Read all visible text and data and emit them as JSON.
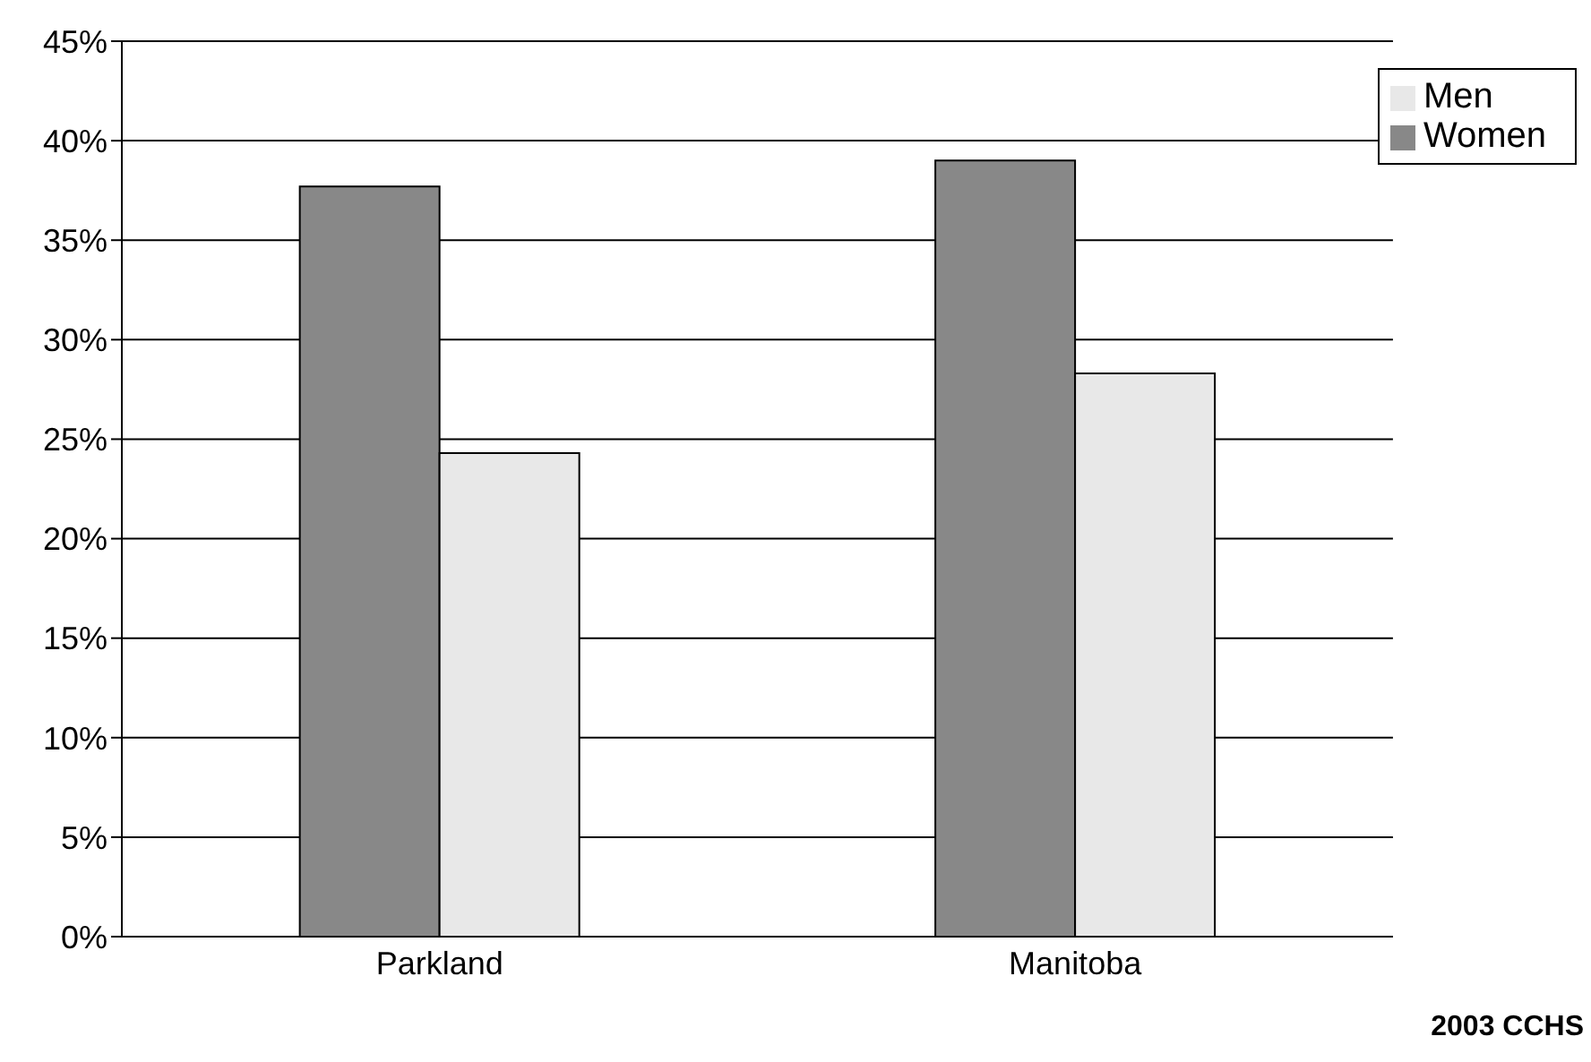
{
  "chart_data": {
    "type": "bar",
    "categories": [
      "Parkland",
      "Manitoba"
    ],
    "series": [
      {
        "name": "Women",
        "color": "#888888",
        "values": [
          37.7,
          39.0
        ]
      },
      {
        "name": "Men",
        "color": "#e8e8e8",
        "values": [
          24.3,
          28.3
        ]
      }
    ],
    "ylim": [
      0,
      45
    ],
    "yticks": [
      {
        "value": 0,
        "label": "0%"
      },
      {
        "value": 5,
        "label": "5%"
      },
      {
        "value": 10,
        "label": "10%"
      },
      {
        "value": 15,
        "label": "15%"
      },
      {
        "value": 20,
        "label": "20%"
      },
      {
        "value": 25,
        "label": "25%"
      },
      {
        "value": 30,
        "label": "30%"
      },
      {
        "value": 35,
        "label": "35%"
      },
      {
        "value": 40,
        "label": "40%"
      },
      {
        "value": 45,
        "label": "45%"
      }
    ],
    "grid": "y",
    "legend": "top right",
    "annotations": [
      "2003 CCHS"
    ]
  }
}
